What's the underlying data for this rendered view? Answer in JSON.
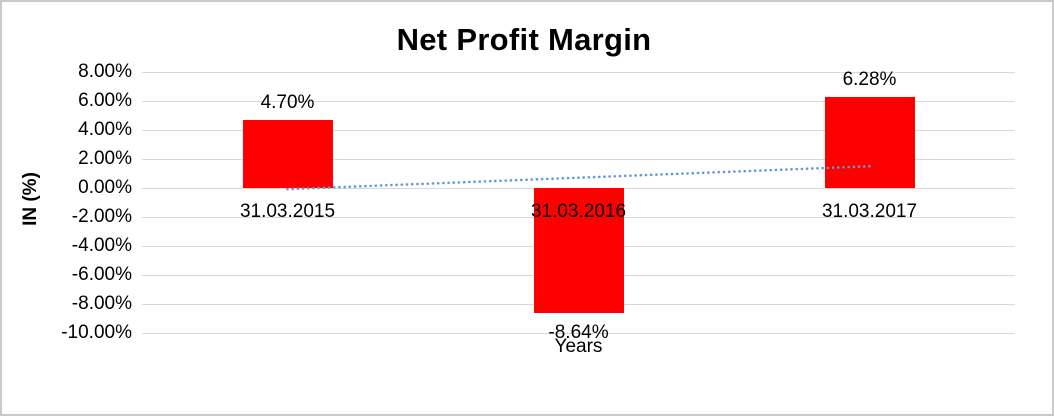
{
  "chart_data": {
    "type": "bar",
    "title": "Net Profit Margin",
    "ylabel": "IN (%)",
    "xlabel": "Years",
    "categories": [
      "31.03.2015",
      "31.03.2016",
      "31.03.2017"
    ],
    "values": [
      4.7,
      -8.64,
      6.28
    ],
    "data_labels": [
      "4.70%",
      "-8.64%",
      "6.28%"
    ],
    "ytick_labels": [
      "8.00%",
      "6.00%",
      "4.00%",
      "2.00%",
      "0.00%",
      "-2.00%",
      "-4.00%",
      "-6.00%",
      "-8.00%",
      "-10.00%"
    ],
    "ylim": [
      -10,
      8
    ],
    "ytick_step": 2,
    "grid": true,
    "legend_position": "none",
    "bar_color": "#FF0000",
    "gridline_color": "#D9D9D9",
    "trendline": {
      "type": "linear",
      "style": "dotted",
      "color": "#5B9BD5"
    }
  }
}
